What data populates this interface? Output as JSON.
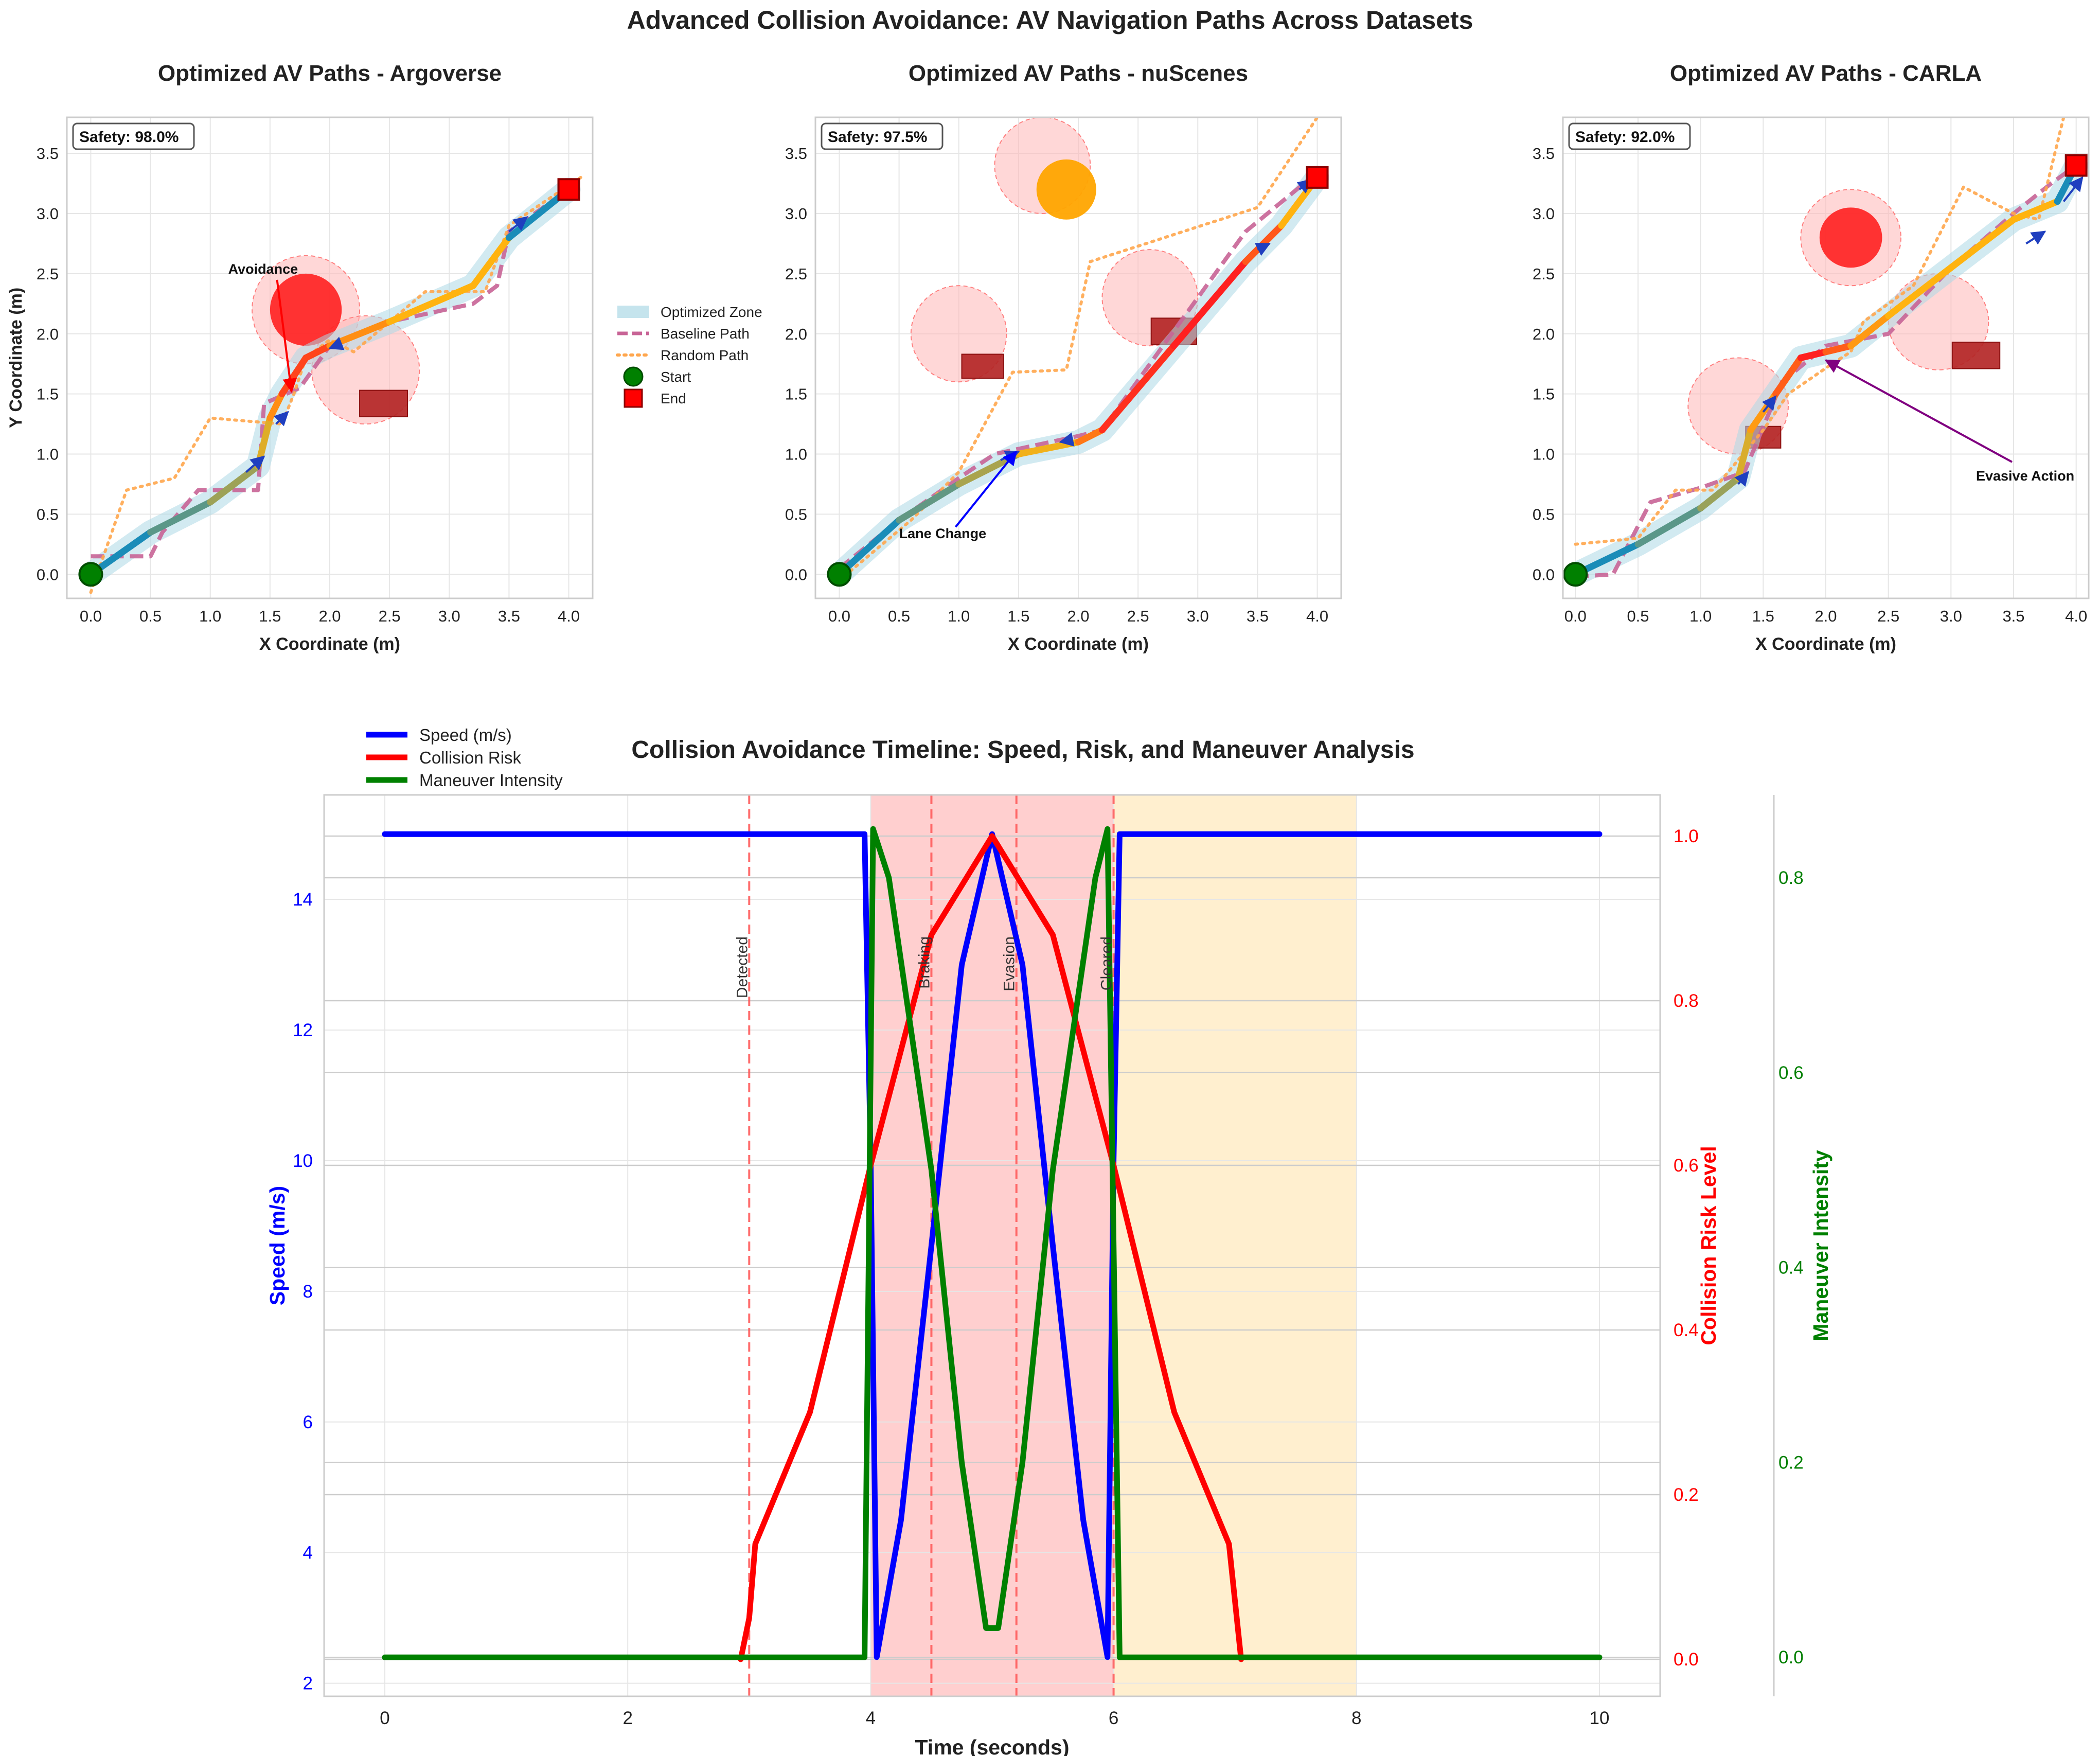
{
  "figure": {
    "title": "Advanced Collision Avoidance: AV Navigation Paths Across Datasets"
  },
  "colors": {
    "optimized_zone": "#add8e6",
    "baseline": "#c86496",
    "random": "#ffa64d",
    "optimized_start": "#1a8cb8",
    "optimized_end": "#ffb30f",
    "obstacle_static": "#b22222",
    "obstacle_dynamic": "#ff2020",
    "obstacle_moving": "#ffa500",
    "risk_halo": "#ffb6b6",
    "start": "#008000",
    "end": "#ff0000",
    "speed": "#0000ff",
    "risk": "#ff0000",
    "maneuver": "#008000",
    "critical_zone": "#ffcccc",
    "recovery_zone": "#ffeecc"
  },
  "chart_data": [
    {
      "type": "line",
      "title": "Optimized AV Paths - Argoverse",
      "xlabel": "X Coordinate (m)",
      "ylabel": "Y Coordinate (m)",
      "xlim": [
        -0.2,
        4.2
      ],
      "ylim": [
        -0.2,
        3.8
      ],
      "xticks": [
        "0.0",
        "0.5",
        "1.0",
        "1.5",
        "2.0",
        "2.5",
        "3.0",
        "3.5",
        "4.0"
      ],
      "yticks": [
        "0.0",
        "0.5",
        "1.0",
        "1.5",
        "2.0",
        "2.5",
        "3.0",
        "3.5"
      ],
      "safety_label": "Safety: 98.0%",
      "grid": true,
      "legend_placement": "outside-right",
      "legend": [
        {
          "label": "Optimized Zone",
          "kind": "band"
        },
        {
          "label": "Baseline Path",
          "kind": "dashed"
        },
        {
          "label": "Random Path",
          "kind": "dotted"
        },
        {
          "label": "Start",
          "kind": "circle"
        },
        {
          "label": "End",
          "kind": "square"
        }
      ],
      "optimized": [
        [
          0,
          0
        ],
        [
          0.5,
          0.35
        ],
        [
          1.0,
          0.6
        ],
        [
          1.4,
          0.9
        ],
        [
          1.5,
          1.3
        ],
        [
          1.6,
          1.5
        ],
        [
          1.8,
          1.8
        ],
        [
          2.0,
          1.9
        ],
        [
          2.5,
          2.1
        ],
        [
          3.2,
          2.4
        ],
        [
          3.5,
          2.8
        ],
        [
          4.0,
          3.2
        ]
      ],
      "baseline": [
        [
          0,
          0.15
        ],
        [
          0.5,
          0.15
        ],
        [
          0.6,
          0.35
        ],
        [
          0.9,
          0.7
        ],
        [
          1.4,
          0.7
        ],
        [
          1.45,
          1.42
        ],
        [
          1.75,
          1.55
        ],
        [
          2.0,
          1.9
        ],
        [
          2.5,
          2.1
        ],
        [
          3.2,
          2.25
        ],
        [
          3.4,
          2.4
        ],
        [
          3.5,
          2.85
        ],
        [
          4.0,
          3.2
        ]
      ],
      "random": [
        [
          0,
          -0.15
        ],
        [
          0.3,
          0.7
        ],
        [
          0.7,
          0.8
        ],
        [
          1.0,
          1.3
        ],
        [
          1.6,
          1.25
        ],
        [
          1.7,
          1.5
        ],
        [
          1.8,
          1.8
        ],
        [
          2.0,
          1.95
        ],
        [
          2.2,
          1.85
        ],
        [
          2.8,
          2.35
        ],
        [
          3.3,
          2.35
        ],
        [
          3.5,
          2.9
        ],
        [
          4.1,
          3.3
        ]
      ],
      "dyn_obstacles": [
        {
          "x": 1.8,
          "y": 2.2,
          "r": 0.3,
          "halo": 0.45
        },
        {
          "x": 2.3,
          "y": 1.7,
          "r": 0,
          "halo": 0.45
        }
      ],
      "static_obstacles": [
        {
          "x": 2.45,
          "y": 1.42,
          "w": 0.4,
          "h": 0.22
        }
      ],
      "moving_obstacles": [],
      "arrows": [
        [
          1.3,
          0.85,
          1.45,
          0.98
        ],
        [
          1.55,
          1.25,
          1.65,
          1.35
        ],
        [
          2.05,
          1.9,
          2.0,
          1.88
        ],
        [
          3.5,
          2.85,
          3.65,
          2.97
        ]
      ],
      "annotations": [
        {
          "text": "Avoidance",
          "tx": 1.15,
          "ty": 2.5,
          "ax": 1.68,
          "ay": 1.52,
          "color": "#ff0000"
        }
      ],
      "start": [
        0,
        0
      ],
      "end": [
        4.0,
        3.2
      ]
    },
    {
      "type": "line",
      "title": "Optimized AV Paths - nuScenes",
      "xlabel": "X Coordinate (m)",
      "ylabel": "",
      "xlim": [
        -0.2,
        4.2
      ],
      "ylim": [
        -0.2,
        3.8
      ],
      "xticks": [
        "0.0",
        "0.5",
        "1.0",
        "1.5",
        "2.0",
        "2.5",
        "3.0",
        "3.5",
        "4.0"
      ],
      "yticks": [
        "0.0",
        "0.5",
        "1.0",
        "1.5",
        "2.0",
        "2.5",
        "3.0",
        "3.5"
      ],
      "safety_label": "Safety: 97.5%",
      "grid": true,
      "optimized": [
        [
          0,
          0
        ],
        [
          0.5,
          0.45
        ],
        [
          1.0,
          0.75
        ],
        [
          1.5,
          1.0
        ],
        [
          2.0,
          1.1
        ],
        [
          2.2,
          1.2
        ],
        [
          2.8,
          1.9
        ],
        [
          3.4,
          2.6
        ],
        [
          3.7,
          2.9
        ],
        [
          4.0,
          3.3
        ]
      ],
      "baseline": [
        [
          0,
          0.05
        ],
        [
          0.5,
          0.45
        ],
        [
          1.0,
          0.8
        ],
        [
          1.3,
          1.0
        ],
        [
          2.0,
          1.15
        ],
        [
          2.2,
          1.2
        ],
        [
          3.4,
          2.85
        ],
        [
          3.95,
          3.3
        ]
      ],
      "random": [
        [
          0,
          -0.05
        ],
        [
          0.6,
          0.45
        ],
        [
          1.0,
          0.85
        ],
        [
          1.45,
          1.68
        ],
        [
          1.9,
          1.7
        ],
        [
          2.1,
          2.6
        ],
        [
          3.5,
          3.05
        ],
        [
          4.0,
          3.8
        ]
      ],
      "dyn_obstacles": [
        {
          "x": 1.7,
          "y": 3.4,
          "r": 0,
          "halo": 0.4
        },
        {
          "x": 1.0,
          "y": 2.0,
          "r": 0,
          "halo": 0.4
        },
        {
          "x": 2.6,
          "y": 2.3,
          "r": 0,
          "halo": 0.4
        }
      ],
      "static_obstacles": [
        {
          "x": 1.2,
          "y": 1.73,
          "w": 0.35,
          "h": 0.2
        },
        {
          "x": 2.8,
          "y": 2.02,
          "w": 0.38,
          "h": 0.22
        }
      ],
      "moving_obstacles": [
        {
          "x": 1.9,
          "y": 3.2,
          "r": 0.25
        }
      ],
      "arrows": [
        [
          1.35,
          0.95,
          1.5,
          1.02
        ],
        [
          1.95,
          1.12,
          1.85,
          1.1
        ],
        [
          3.5,
          2.7,
          3.6,
          2.75
        ],
        [
          3.85,
          3.2,
          3.95,
          3.28
        ]
      ],
      "annotations": [
        {
          "text": "Lane Change",
          "tx": 0.5,
          "ty": 0.3,
          "ax": 1.48,
          "ay": 1.02,
          "color": "#0000ff"
        }
      ],
      "start": [
        0,
        0
      ],
      "end": [
        4.0,
        3.3
      ]
    },
    {
      "type": "line",
      "title": "Optimized AV Paths - CARLA",
      "xlabel": "X Coordinate (m)",
      "ylabel": "",
      "xlim": [
        -0.1,
        4.1
      ],
      "ylim": [
        -0.2,
        3.8
      ],
      "xticks": [
        "0.0",
        "0.5",
        "1.0",
        "1.5",
        "2.0",
        "2.5",
        "3.0",
        "3.5",
        "4.0"
      ],
      "yticks": [
        "0.0",
        "0.5",
        "1.0",
        "1.5",
        "2.0",
        "2.5",
        "3.0",
        "3.5"
      ],
      "safety_label": "Safety: 92.0%",
      "grid": true,
      "optimized": [
        [
          0,
          0
        ],
        [
          0.5,
          0.25
        ],
        [
          1.0,
          0.55
        ],
        [
          1.3,
          0.8
        ],
        [
          1.4,
          1.2
        ],
        [
          1.6,
          1.5
        ],
        [
          1.8,
          1.8
        ],
        [
          2.0,
          1.85
        ],
        [
          2.2,
          1.9
        ],
        [
          2.5,
          2.15
        ],
        [
          3.0,
          2.55
        ],
        [
          3.5,
          2.95
        ],
        [
          3.85,
          3.1
        ],
        [
          4.0,
          3.4
        ]
      ],
      "baseline": [
        [
          0,
          -0.02
        ],
        [
          0.3,
          0.0
        ],
        [
          0.6,
          0.6
        ],
        [
          1.0,
          0.72
        ],
        [
          1.35,
          0.85
        ],
        [
          1.45,
          1.1
        ],
        [
          1.65,
          1.6
        ],
        [
          2.0,
          1.9
        ],
        [
          2.5,
          2.0
        ],
        [
          3.0,
          2.55
        ],
        [
          3.5,
          3.0
        ],
        [
          3.8,
          3.25
        ],
        [
          4.0,
          3.4
        ]
      ],
      "random": [
        [
          0,
          0.25
        ],
        [
          0.5,
          0.3
        ],
        [
          0.8,
          0.7
        ],
        [
          1.1,
          0.7
        ],
        [
          1.5,
          1.2
        ],
        [
          1.7,
          1.5
        ],
        [
          2.05,
          1.75
        ],
        [
          2.2,
          1.85
        ],
        [
          2.3,
          2.1
        ],
        [
          2.7,
          2.4
        ],
        [
          3.1,
          3.22
        ],
        [
          3.5,
          3.0
        ],
        [
          3.7,
          2.95
        ],
        [
          3.9,
          3.8
        ]
      ],
      "dyn_obstacles": [
        {
          "x": 2.2,
          "y": 2.8,
          "r": 0.25,
          "halo": 0.4
        },
        {
          "x": 1.3,
          "y": 1.4,
          "r": 0,
          "halo": 0.4
        },
        {
          "x": 2.9,
          "y": 2.1,
          "r": 0,
          "halo": 0.4
        }
      ],
      "static_obstacles": [
        {
          "x": 1.5,
          "y": 1.14,
          "w": 0.28,
          "h": 0.18
        },
        {
          "x": 3.2,
          "y": 1.82,
          "w": 0.38,
          "h": 0.22
        }
      ],
      "moving_obstacles": [],
      "arrows": [
        [
          1.3,
          0.75,
          1.38,
          0.85
        ],
        [
          1.5,
          1.35,
          1.6,
          1.48
        ],
        [
          3.6,
          2.75,
          3.75,
          2.85
        ],
        [
          3.9,
          3.1,
          4.05,
          3.3
        ]
      ],
      "annotations": [
        {
          "text": "Evasive Action",
          "tx": 3.2,
          "ty": 0.78,
          "ax": 2.0,
          "ay": 1.78,
          "color": "#800080"
        }
      ],
      "start": [
        0,
        0
      ],
      "end": [
        4.0,
        3.4
      ]
    },
    {
      "type": "line",
      "title": "Collision Avoidance Timeline: Speed, Risk, and Maneuver Analysis",
      "xlabel": "Time (seconds)",
      "ylabel": "Speed (m/s)",
      "ylabel_right": "Collision Risk Level",
      "ylabel_right2": "Maneuver Intensity",
      "xlim": [
        -0.5,
        10.5
      ],
      "ylim": [
        1.8,
        15.6
      ],
      "ylim_right": [
        -0.045,
        1.05
      ],
      "ylim_right2": [
        -0.04,
        0.885
      ],
      "xticks": [
        "0",
        "2",
        "4",
        "6",
        "8",
        "10"
      ],
      "yticks": [
        "2",
        "4",
        "6",
        "8",
        "10",
        "12",
        "14"
      ],
      "yticks_right": [
        "0.0",
        "0.2",
        "0.4",
        "0.6",
        "0.8",
        "1.0"
      ],
      "yticks_right2": [
        "0.0",
        "0.2",
        "0.4",
        "0.6",
        "0.8"
      ],
      "grid": true,
      "legend_placement": "top-left",
      "legend": [
        {
          "label": "Speed (m/s)",
          "color": "#0000ff"
        },
        {
          "label": "Collision Risk",
          "color": "#ff0000"
        },
        {
          "label": "Maneuver Intensity",
          "color": "#008000"
        }
      ],
      "zones": [
        {
          "x0": 4.0,
          "x1": 6.0,
          "color": "#ffcccc"
        },
        {
          "x0": 6.0,
          "x1": 8.0,
          "color": "#ffeecc"
        }
      ],
      "events": [
        {
          "t": 3.0,
          "label": "Detected"
        },
        {
          "t": 4.5,
          "label": "Braking"
        },
        {
          "t": 5.2,
          "label": "Evasion"
        },
        {
          "t": 6.0,
          "label": "Cleared"
        }
      ],
      "series": [
        {
          "name": "Speed (m/s)",
          "axis": "left",
          "points": [
            [
              0,
              15
            ],
            [
              3.95,
              15
            ],
            [
              4.0,
              10
            ],
            [
              4.05,
              2.4
            ],
            [
              4.25,
              4.5
            ],
            [
              4.5,
              8.7
            ],
            [
              4.75,
              13
            ],
            [
              5.0,
              15
            ],
            [
              5.25,
              13
            ],
            [
              5.5,
              8.7
            ],
            [
              5.75,
              4.5
            ],
            [
              5.95,
              2.4
            ],
            [
              6.0,
              10
            ],
            [
              6.05,
              15
            ],
            [
              10,
              15
            ]
          ]
        },
        {
          "name": "Collision Risk",
          "axis": "right",
          "points": [
            [
              2.93,
              0
            ],
            [
              3.0,
              0.05
            ],
            [
              3.05,
              0.14
            ],
            [
              3.5,
              0.3
            ],
            [
              4.0,
              0.6
            ],
            [
              4.5,
              0.88
            ],
            [
              5.0,
              1.0
            ],
            [
              5.5,
              0.88
            ],
            [
              6.0,
              0.6
            ],
            [
              6.5,
              0.3
            ],
            [
              6.95,
              0.14
            ],
            [
              7.05,
              0
            ]
          ]
        },
        {
          "name": "Maneuver Intensity",
          "axis": "right2",
          "points": [
            [
              0,
              0
            ],
            [
              3.95,
              0
            ],
            [
              4.02,
              0.85
            ],
            [
              4.15,
              0.8
            ],
            [
              4.5,
              0.5
            ],
            [
              4.75,
              0.2
            ],
            [
              4.95,
              0.03
            ],
            [
              5.05,
              0.03
            ],
            [
              5.25,
              0.2
            ],
            [
              5.5,
              0.5
            ],
            [
              5.85,
              0.8
            ],
            [
              5.95,
              0.85
            ],
            [
              6.05,
              0
            ],
            [
              10,
              0
            ]
          ]
        }
      ]
    }
  ]
}
